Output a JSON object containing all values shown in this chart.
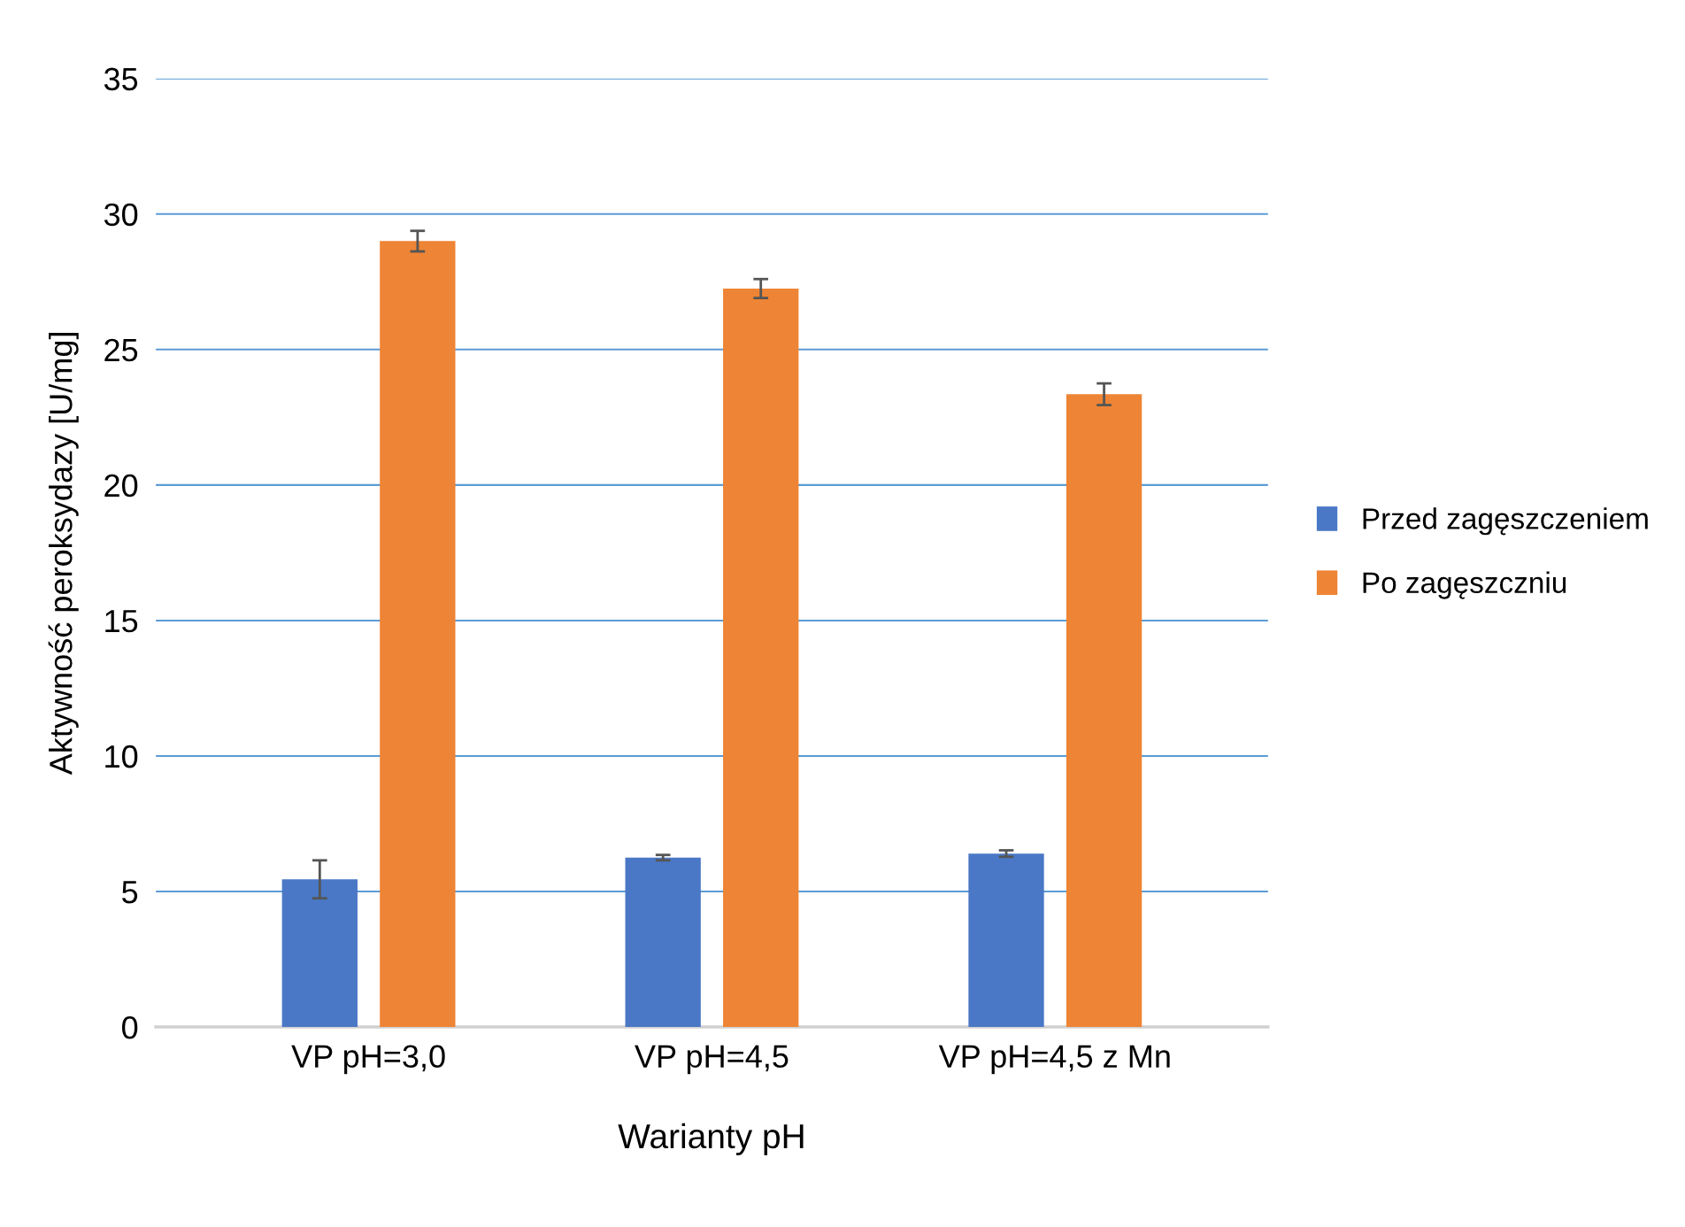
{
  "chart_data": {
    "type": "bar",
    "xlabel": "Warianty pH",
    "ylabel": "Aktywność peroksydazy [U/mg]",
    "categories": [
      "VP pH=3,0",
      "VP pH=4,5",
      "VP pH=4,5 z Mn"
    ],
    "series": [
      {
        "name": "Przed zagęszczeniem",
        "color": "#4a78c6",
        "values": [
          5.45,
          6.25,
          6.4
        ],
        "errors": [
          0.7,
          0.1,
          0.12
        ]
      },
      {
        "name": "Po zagęszczniu",
        "color": "#ee8435",
        "values": [
          29.0,
          27.25,
          23.35
        ],
        "errors": [
          0.38,
          0.35,
          0.4
        ]
      }
    ],
    "ylim": [
      0,
      35
    ],
    "yticks": [
      0,
      5,
      10,
      15,
      20,
      25,
      30,
      35
    ],
    "grid": "y",
    "legend": "right"
  }
}
